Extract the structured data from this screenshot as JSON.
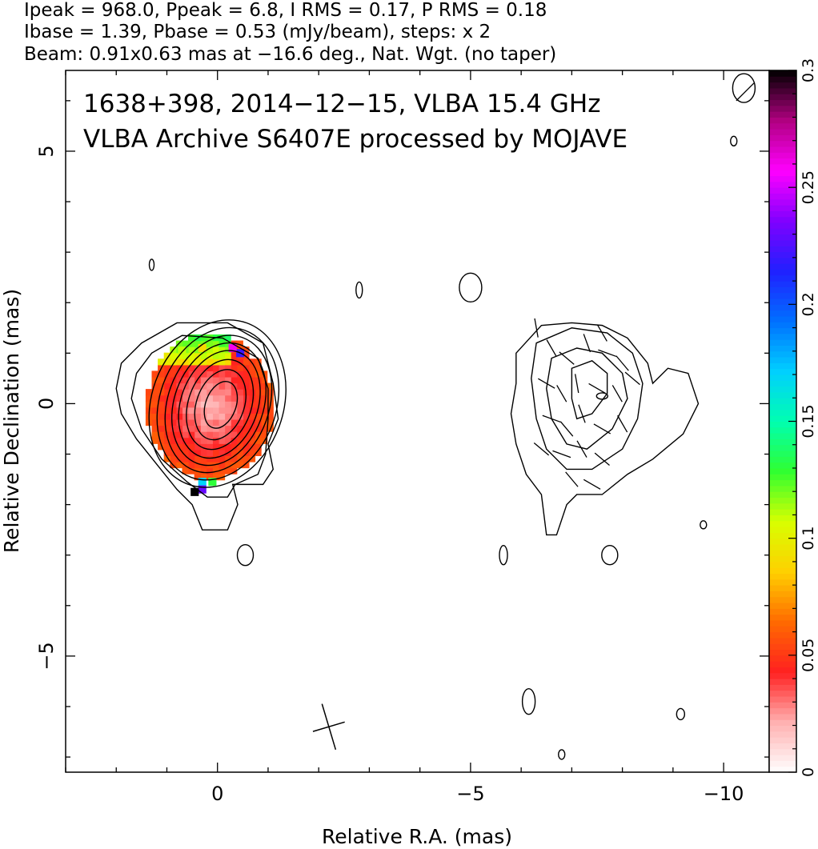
{
  "header": {
    "line1": "Ipeak = 968.0, Ppeak = 6.8, I RMS = 0.17, P RMS = 0.18",
    "line2": "Ibase = 1.39, Pbase = 0.53 (mJy/beam), steps: x 2",
    "line3": "Beam: 0.91x0.63 mas at −16.6 deg., Nat. Wgt. (no taper)"
  },
  "annotation": {
    "line1": "1638+398, 2014−12−15, VLBA 15.4 GHz",
    "line2": "VLBA Archive S6407E processed by MOJAVE"
  },
  "chart_data": {
    "type": "heatmap",
    "title": "",
    "xlabel": "Relative R.A. (mas)",
    "ylabel": "Relative Declination (mas)",
    "xlim": [
      3,
      -10.9
    ],
    "ylim": [
      -7.3,
      6.6
    ],
    "x_ticks": [
      0,
      -5,
      -10
    ],
    "x_tick_labels": [
      "0",
      "−5",
      "−10"
    ],
    "y_ticks": [
      5,
      0,
      -5
    ],
    "y_tick_labels": [
      "5",
      "0",
      "−5"
    ],
    "grid": false,
    "colorbar": {
      "range": [
        0,
        0.3
      ],
      "ticks": [
        0,
        0.05,
        0.1,
        0.15,
        0.2,
        0.25,
        0.3
      ],
      "tick_labels": [
        "0",
        "0.05",
        "0.1",
        "0.15",
        "0.2",
        "0.25",
        "0.3"
      ],
      "colormap": [
        "#ffffff",
        "#ffb0b0",
        "#ff2020",
        "#ff6a00",
        "#ffd000",
        "#d8ff00",
        "#30ff30",
        "#00ffb0",
        "#00d0ff",
        "#0070ff",
        "#2020ff",
        "#8000ff",
        "#ff00ff",
        "#b00080",
        "#000000"
      ]
    },
    "core_contours": {
      "center": [
        0,
        0
      ],
      "levels_mas": [
        {
          "rx": 1.3,
          "ry": 1.7
        },
        {
          "rx": 1.15,
          "ry": 1.55
        },
        {
          "rx": 1.0,
          "ry": 1.4
        },
        {
          "rx": 0.88,
          "ry": 1.25
        },
        {
          "rx": 0.76,
          "ry": 1.1
        },
        {
          "rx": 0.62,
          "ry": 0.92
        },
        {
          "rx": 0.47,
          "ry": 0.72
        },
        {
          "rx": 0.3,
          "ry": 0.48
        }
      ]
    },
    "polarization_fraction_patches": [
      {
        "x": 0.1,
        "y": -1.55,
        "value": 0.13
      },
      {
        "x": 0.3,
        "y": -1.55,
        "value": 0.17
      },
      {
        "x": 0.3,
        "y": -1.7,
        "value": 0.23
      },
      {
        "x": 0.45,
        "y": -1.75,
        "value": 0.3
      },
      {
        "x": -0.45,
        "y": 1.0,
        "value": 0.22
      },
      {
        "x": -0.3,
        "y": 1.1,
        "value": 0.26
      },
      {
        "x": 0.3,
        "y": 1.1,
        "value": 0.09
      },
      {
        "x": 0.7,
        "y": 1.05,
        "value": 0.11
      }
    ],
    "jet_evpa_ticks": [
      {
        "x": -6.6,
        "y": 1.1,
        "angle": 60
      },
      {
        "x": -6.9,
        "y": 0.9,
        "angle": 40
      },
      {
        "x": -7.3,
        "y": 1.2,
        "angle": 70
      },
      {
        "x": -7.7,
        "y": 1.0,
        "angle": 20
      },
      {
        "x": -8.0,
        "y": 0.8,
        "angle": 50
      },
      {
        "x": -6.5,
        "y": 0.4,
        "angle": 30
      },
      {
        "x": -6.8,
        "y": 0.2,
        "angle": 60
      },
      {
        "x": -7.1,
        "y": 0.4,
        "angle": 80
      },
      {
        "x": -7.5,
        "y": 0.3,
        "angle": 30
      },
      {
        "x": -7.9,
        "y": 0.2,
        "angle": 60
      },
      {
        "x": -8.2,
        "y": 0.5,
        "angle": 40
      },
      {
        "x": -6.6,
        "y": -0.3,
        "angle": 20
      },
      {
        "x": -6.9,
        "y": -0.5,
        "angle": 50
      },
      {
        "x": -7.2,
        "y": -0.2,
        "angle": 70
      },
      {
        "x": -7.6,
        "y": -0.5,
        "angle": 30
      },
      {
        "x": -8.0,
        "y": -0.4,
        "angle": 60
      },
      {
        "x": -6.4,
        "y": -0.9,
        "angle": 40
      },
      {
        "x": -6.8,
        "y": -1.0,
        "angle": 20
      },
      {
        "x": -7.2,
        "y": -0.9,
        "angle": 60
      },
      {
        "x": -7.6,
        "y": -1.1,
        "angle": 40
      },
      {
        "x": -7.0,
        "y": -1.5,
        "angle": 50
      },
      {
        "x": -7.4,
        "y": -1.6,
        "angle": 30
      },
      {
        "x": -7.6,
        "y": 1.4,
        "angle": 60
      },
      {
        "x": -6.3,
        "y": 1.5,
        "angle": 80
      }
    ],
    "beam": {
      "x": -2.2,
      "y": -6.4,
      "major": 0.91,
      "minor": 0.63,
      "pa": -16.6
    }
  }
}
